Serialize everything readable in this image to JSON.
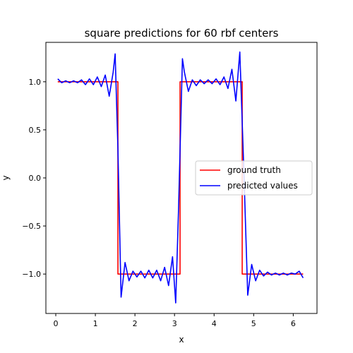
{
  "chart_data": {
    "type": "line",
    "title": "square predictions for 60 rbf centers",
    "xlabel": "x",
    "ylabel": "y",
    "xlim": [
      -0.25,
      6.6
    ],
    "ylim": [
      -1.41,
      1.41
    ],
    "xticks": [
      0,
      1,
      2,
      3,
      4,
      5,
      6
    ],
    "xtick_labels": [
      "0",
      "1",
      "2",
      "3",
      "4",
      "5",
      "6"
    ],
    "yticks": [
      1.0,
      0.5,
      0.0,
      -0.5,
      -1.0
    ],
    "ytick_labels": [
      "1.0",
      "0.5",
      "0.0",
      "−0.5",
      "−1.0"
    ],
    "grid": false,
    "legend_position": "center-right",
    "series": [
      {
        "name": "ground truth",
        "color": "#ff0000",
        "x": [
          0.05,
          1.57,
          1.57,
          3.14,
          3.14,
          4.71,
          4.71,
          6.25
        ],
        "y": [
          1,
          1,
          -1,
          -1,
          1,
          1,
          -1,
          -1
        ]
      },
      {
        "name": "predicted values",
        "color": "#0000ff",
        "x": [
          0.05,
          0.15,
          0.25,
          0.35,
          0.45,
          0.55,
          0.65,
          0.75,
          0.85,
          0.95,
          1.05,
          1.15,
          1.25,
          1.35,
          1.45,
          1.5,
          1.57,
          1.65,
          1.75,
          1.85,
          1.95,
          2.05,
          2.15,
          2.25,
          2.35,
          2.45,
          2.55,
          2.65,
          2.75,
          2.85,
          2.95,
          3.03,
          3.1,
          3.2,
          3.25,
          3.35,
          3.45,
          3.55,
          3.65,
          3.75,
          3.85,
          3.95,
          4.05,
          4.15,
          4.25,
          4.35,
          4.45,
          4.55,
          4.65,
          4.75,
          4.85,
          4.95,
          5.05,
          5.15,
          5.25,
          5.35,
          5.45,
          5.55,
          5.65,
          5.75,
          5.85,
          5.95,
          6.05,
          6.15,
          6.25
        ],
        "y": [
          1.03,
          0.99,
          1.01,
          0.99,
          1.01,
          0.99,
          1.02,
          0.97,
          1.03,
          0.97,
          1.05,
          0.95,
          1.07,
          0.85,
          1.1,
          1.29,
          0.3,
          -1.24,
          -0.88,
          -1.07,
          -0.97,
          -1.03,
          -0.97,
          -1.04,
          -0.96,
          -1.04,
          -0.96,
          -1.07,
          -0.93,
          -1.12,
          -0.82,
          -1.3,
          -0.35,
          1.24,
          1.1,
          0.9,
          1.02,
          0.96,
          1.02,
          0.98,
          1.02,
          0.98,
          1.03,
          0.97,
          1.05,
          0.93,
          1.13,
          0.8,
          1.31,
          0.1,
          -1.22,
          -0.9,
          -1.07,
          -0.96,
          -1.02,
          -0.98,
          -1.01,
          -0.99,
          -1.01,
          -0.99,
          -1.01,
          -0.99,
          -1.0,
          -0.97,
          -1.04
        ]
      }
    ]
  }
}
